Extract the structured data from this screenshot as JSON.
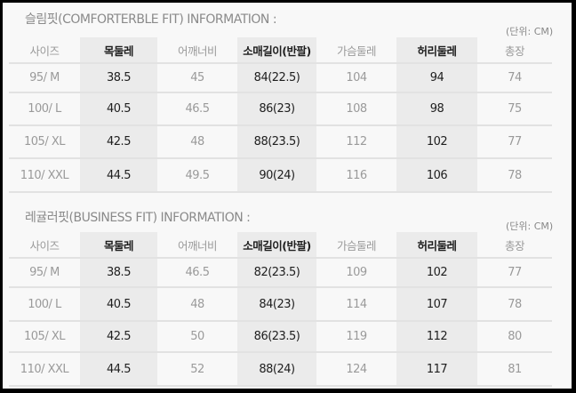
{
  "tables": [
    {
      "title": "슬림핏(COMFORTERBLE FIT) INFORMATION :",
      "unit": "(단위: CM)",
      "headers": [
        "사이즈",
        "목둘레",
        "어깨너비",
        "소매길이(반팔)",
        "가슴둘레",
        "허리둘레",
        "총장"
      ],
      "rows": [
        [
          "95/ M",
          "38.5",
          "45",
          "84(22.5)",
          "104",
          "94",
          "74"
        ],
        [
          "100/ L",
          "40.5",
          "46.5",
          "86(23)",
          "108",
          "98",
          "75"
        ],
        [
          "105/ XL",
          "42.5",
          "48",
          "88(23.5)",
          "112",
          "102",
          "77"
        ],
        [
          "110/ XXL",
          "44.5",
          "49.5",
          "90(24)",
          "116",
          "106",
          "78"
        ]
      ]
    },
    {
      "title": "레귤러핏(BUSINESS FIT) INFORMATION :",
      "unit": "(단위: CM)",
      "headers": [
        "사이즈",
        "목둘레",
        "어깨너비",
        "소매길이(반팔)",
        "가슴둘레",
        "허리둘레",
        "총장"
      ],
      "rows": [
        [
          "95/ M",
          "38.5",
          "46.5",
          "82(23.5)",
          "109",
          "102",
          "77"
        ],
        [
          "100/ L",
          "40.5",
          "48",
          "84(23)",
          "114",
          "107",
          "78"
        ],
        [
          "105/ XL",
          "42.5",
          "50",
          "86(23.5)",
          "119",
          "112",
          "80"
        ],
        [
          "110/ XXL",
          "44.5",
          "52",
          "88(24)",
          "124",
          "117",
          "81"
        ]
      ]
    }
  ]
}
